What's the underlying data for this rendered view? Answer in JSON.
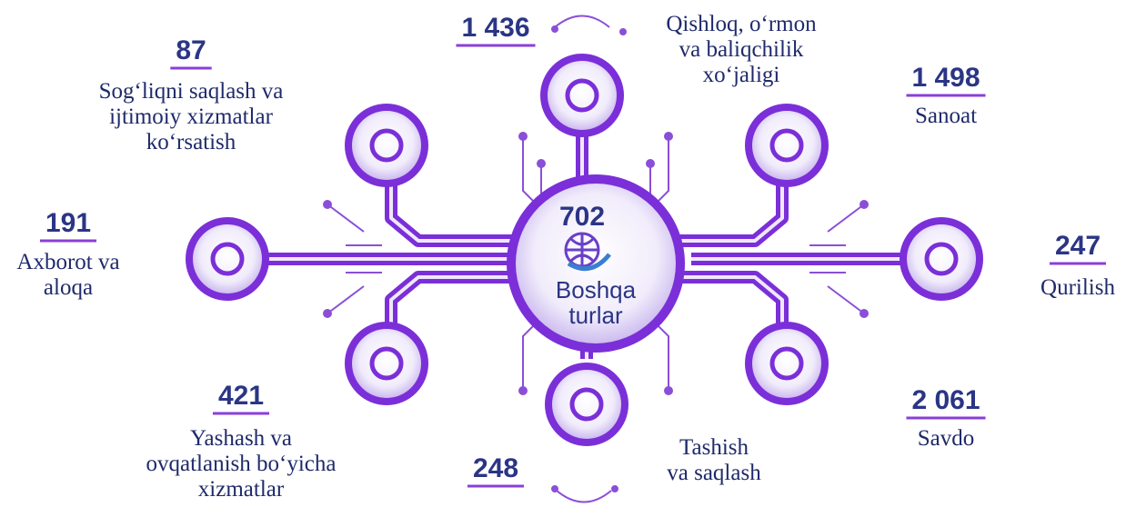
{
  "center": {
    "value": "702",
    "label": [
      "Boshqa",
      "turlar"
    ]
  },
  "nodes": [
    {
      "value": "87",
      "label": [
        "Sog‘liqni saqlash va",
        "ijtimoiy xizmatlar",
        "ko‘rsatish"
      ]
    },
    {
      "value": "1 436",
      "label": [
        "Qishloq, o‘rmon",
        "va baliqchilik",
        "xo‘jaligi"
      ]
    },
    {
      "value": "1 498",
      "label": [
        "Sanoat"
      ]
    },
    {
      "value": "247",
      "label": [
        "Qurilish"
      ]
    },
    {
      "value": "2 061",
      "label": [
        "Savdo"
      ]
    },
    {
      "value": "248",
      "label": [
        "Tashish",
        "va saqlash"
      ]
    },
    {
      "value": "421",
      "label": [
        "Yashash  va",
        "ovqatlanish bo‘yicha",
        "xizmatlar"
      ]
    },
    {
      "value": "191",
      "label": [
        "Axborot va",
        "aloqa"
      ]
    }
  ]
}
